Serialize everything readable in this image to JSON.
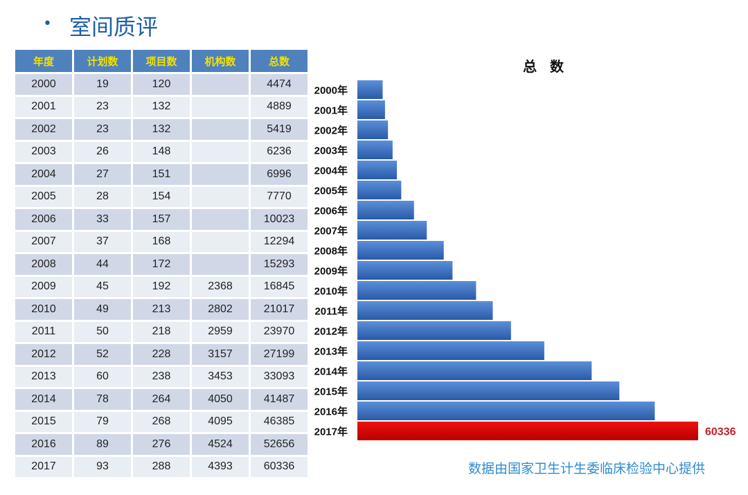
{
  "slide": {
    "bullet": "•",
    "title": "室间质评",
    "source_note": "数据由国家卫生计生委临床检验中心提供"
  },
  "table": {
    "headers": [
      "年度",
      "计划数",
      "项目数",
      "机构数",
      "总数"
    ],
    "rows": [
      [
        "2000",
        "19",
        "120",
        "",
        "4474"
      ],
      [
        "2001",
        "23",
        "132",
        "",
        "4889"
      ],
      [
        "2002",
        "23",
        "132",
        "",
        "5419"
      ],
      [
        "2003",
        "26",
        "148",
        "",
        "6236"
      ],
      [
        "2004",
        "27",
        "151",
        "",
        "6996"
      ],
      [
        "2005",
        "28",
        "154",
        "",
        "7770"
      ],
      [
        "2006",
        "33",
        "157",
        "",
        "10023"
      ],
      [
        "2007",
        "37",
        "168",
        "",
        "12294"
      ],
      [
        "2008",
        "44",
        "172",
        "",
        "15293"
      ],
      [
        "2009",
        "45",
        "192",
        "2368",
        "16845"
      ],
      [
        "2010",
        "49",
        "213",
        "2802",
        "21017"
      ],
      [
        "2011",
        "50",
        "218",
        "2959",
        "23970"
      ],
      [
        "2012",
        "52",
        "228",
        "3157",
        "27199"
      ],
      [
        "2013",
        "60",
        "238",
        "3453",
        "33093"
      ],
      [
        "2014",
        "78",
        "264",
        "4050",
        "41487"
      ],
      [
        "2015",
        "79",
        "268",
        "4095",
        "46385"
      ],
      [
        "2016",
        "89",
        "276",
        "4524",
        "52656"
      ],
      [
        "2017",
        "93",
        "288",
        "4393",
        "60336"
      ]
    ]
  },
  "chart_data": {
    "type": "bar",
    "orientation": "horizontal",
    "title": "总 数",
    "categories": [
      "2000年",
      "2001年",
      "2002年",
      "2003年",
      "2004年",
      "2005年",
      "2006年",
      "2007年",
      "2008年",
      "2009年",
      "2010年",
      "2011年",
      "2012年",
      "2013年",
      "2014年",
      "2015年",
      "2016年",
      "2017年"
    ],
    "values": [
      4474,
      4889,
      5419,
      6236,
      6996,
      7770,
      10023,
      12294,
      15293,
      16845,
      21017,
      23970,
      27199,
      33093,
      41487,
      46385,
      52656,
      60336
    ],
    "data_labels": {
      "2017年": "60336"
    },
    "xlim": [
      0,
      60336
    ],
    "grid": false,
    "colors": {
      "default": "#3a6fc4",
      "highlight": "#d00000",
      "highlight_label": "#c0202a"
    }
  }
}
